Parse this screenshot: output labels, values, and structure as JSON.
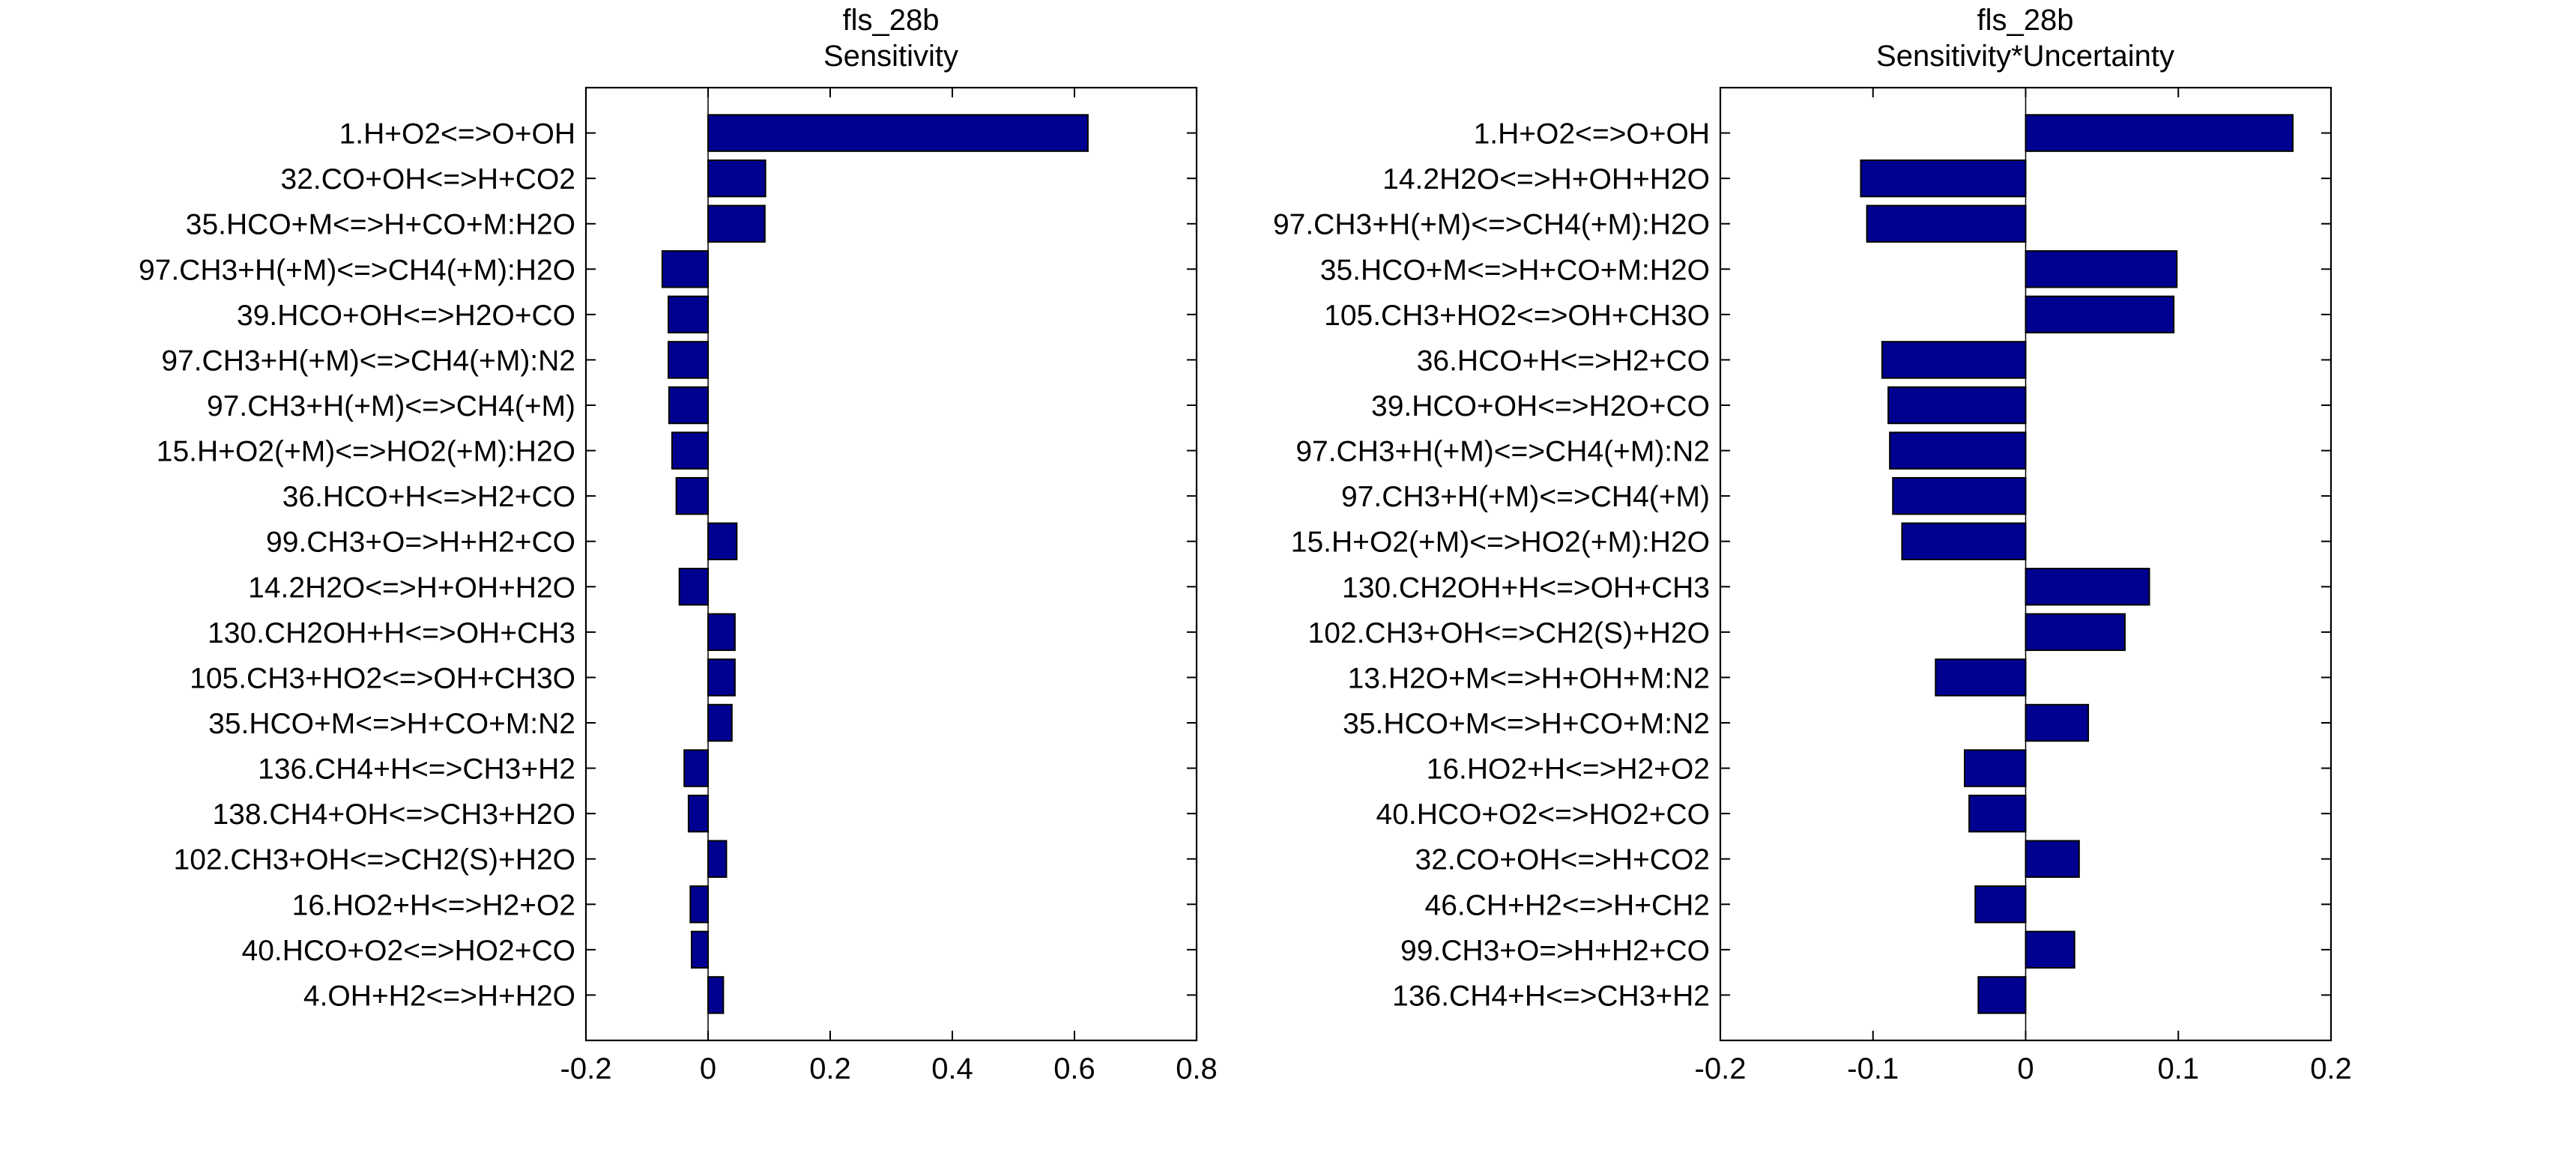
{
  "chart_data": [
    {
      "type": "bar",
      "orientation": "horizontal",
      "title": "fls_28b",
      "subtitle": "Sensitivity",
      "xlabel": "",
      "ylabel": "",
      "xlim": [
        -0.2,
        0.8
      ],
      "xticks": [
        "-0.2",
        "0",
        "0.2",
        "0.4",
        "0.6",
        "0.8"
      ],
      "xtick_values": [
        -0.2,
        0,
        0.2,
        0.4,
        0.6,
        0.8
      ],
      "grid": false,
      "bar_color": "#000090",
      "categories": [
        "1.H+O2<=>O+OH",
        "32.CO+OH<=>H+CO2",
        "35.HCO+M<=>H+CO+M:H2O",
        "97.CH3+H(+M)<=>CH4(+M):H2O",
        "39.HCO+OH<=>H2O+CO",
        "97.CH3+H(+M)<=>CH4(+M):N2",
        "97.CH3+H(+M)<=>CH4(+M)",
        "15.H+O2(+M)<=>HO2(+M):H2O",
        "36.HCO+H<=>H2+CO",
        "99.CH3+O=>H+H2+CO",
        "14.2H2O<=>H+OH+H2O",
        "130.CH2OH+H<=>OH+CH3",
        "105.CH3+HO2<=>OH+CH3O",
        "35.HCO+M<=>H+CO+M:N2",
        "136.CH4+H<=>CH3+H2",
        "138.CH4+OH<=>CH3+H2O",
        "102.CH3+OH<=>CH2(S)+H2O",
        "16.HO2+H<=>H2+O2",
        "40.HCO+O2<=>HO2+CO",
        "4.OH+H2<=>H+H2O"
      ],
      "values": [
        0.622,
        0.094,
        0.093,
        -0.075,
        -0.065,
        -0.065,
        -0.064,
        -0.059,
        -0.052,
        0.047,
        -0.047,
        0.044,
        0.044,
        0.039,
        -0.039,
        -0.032,
        0.03,
        -0.029,
        -0.027,
        0.025
      ]
    },
    {
      "type": "bar",
      "orientation": "horizontal",
      "title": "fls_28b",
      "subtitle": "Sensitivity*Uncertainty",
      "xlabel": "",
      "ylabel": "",
      "xlim": [
        -0.2,
        0.2
      ],
      "xticks": [
        "-0.2",
        "-0.1",
        "0",
        "0.1",
        "0.2"
      ],
      "xtick_values": [
        -0.2,
        -0.1,
        0,
        0.1,
        0.2
      ],
      "grid": false,
      "bar_color": "#000090",
      "categories": [
        "1.H+O2<=>O+OH",
        "14.2H2O<=>H+OH+H2O",
        "97.CH3+H(+M)<=>CH4(+M):H2O",
        "35.HCO+M<=>H+CO+M:H2O",
        "105.CH3+HO2<=>OH+CH3O",
        "36.HCO+H<=>H2+CO",
        "39.HCO+OH<=>H2O+CO",
        "97.CH3+H(+M)<=>CH4(+M):N2",
        "97.CH3+H(+M)<=>CH4(+M)",
        "15.H+O2(+M)<=>HO2(+M):H2O",
        "130.CH2OH+H<=>OH+CH3",
        "102.CH3+OH<=>CH2(S)+H2O",
        "13.H2O+M<=>H+OH+M:N2",
        "35.HCO+M<=>H+CO+M:N2",
        "16.HO2+H<=>H2+O2",
        "40.HCO+O2<=>HO2+CO",
        "32.CO+OH<=>H+CO2",
        "46.CH+H2<=>H+CH2",
        "99.CH3+O=>H+H2+CO",
        "136.CH4+H<=>CH3+H2"
      ],
      "values": [
        0.175,
        -0.108,
        -0.104,
        0.099,
        0.097,
        -0.094,
        -0.09,
        -0.089,
        -0.087,
        -0.081,
        0.081,
        0.065,
        -0.059,
        0.041,
        -0.04,
        -0.037,
        0.035,
        -0.033,
        0.032,
        -0.031
      ]
    }
  ]
}
